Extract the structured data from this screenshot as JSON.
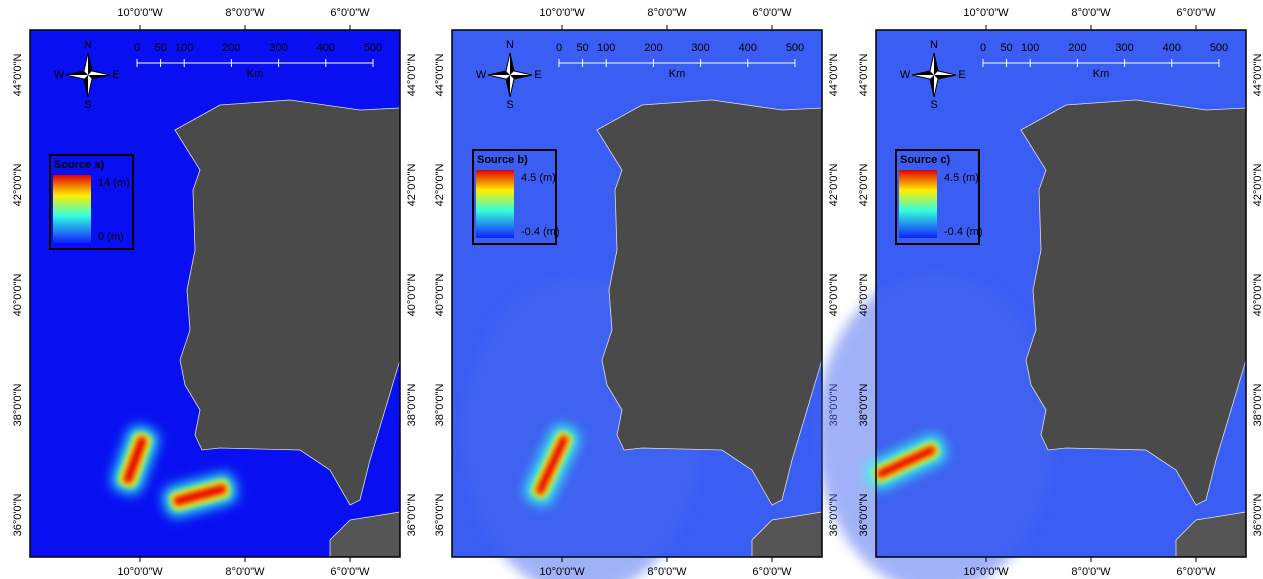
{
  "panels": [
    {
      "legend_title": "Source a)",
      "max_label": "14 (m)",
      "min_label": "0 (m)"
    },
    {
      "legend_title": "Source b)",
      "max_label": "4.5 (m)",
      "min_label": "-0.4 (m)"
    },
    {
      "legend_title": "Source c)",
      "max_label": "4.5 (m)",
      "min_label": "-0.4 (m)"
    }
  ],
  "longitude_labels": [
    "10°0'0\"W",
    "8°0'0\"W",
    "6°0'0\"W"
  ],
  "latitude_labels": [
    "44°0'0\"N",
    "42°0'0\"N",
    "40°0'0\"N",
    "38°0'0\"N",
    "36°0'0\"N"
  ],
  "scale_bar": {
    "ticks": [
      "0",
      "50",
      "100",
      "200",
      "300",
      "400",
      "500"
    ],
    "unit": "Km"
  },
  "compass": {
    "north": "N",
    "east": "E",
    "south": "S",
    "west": "W"
  }
}
